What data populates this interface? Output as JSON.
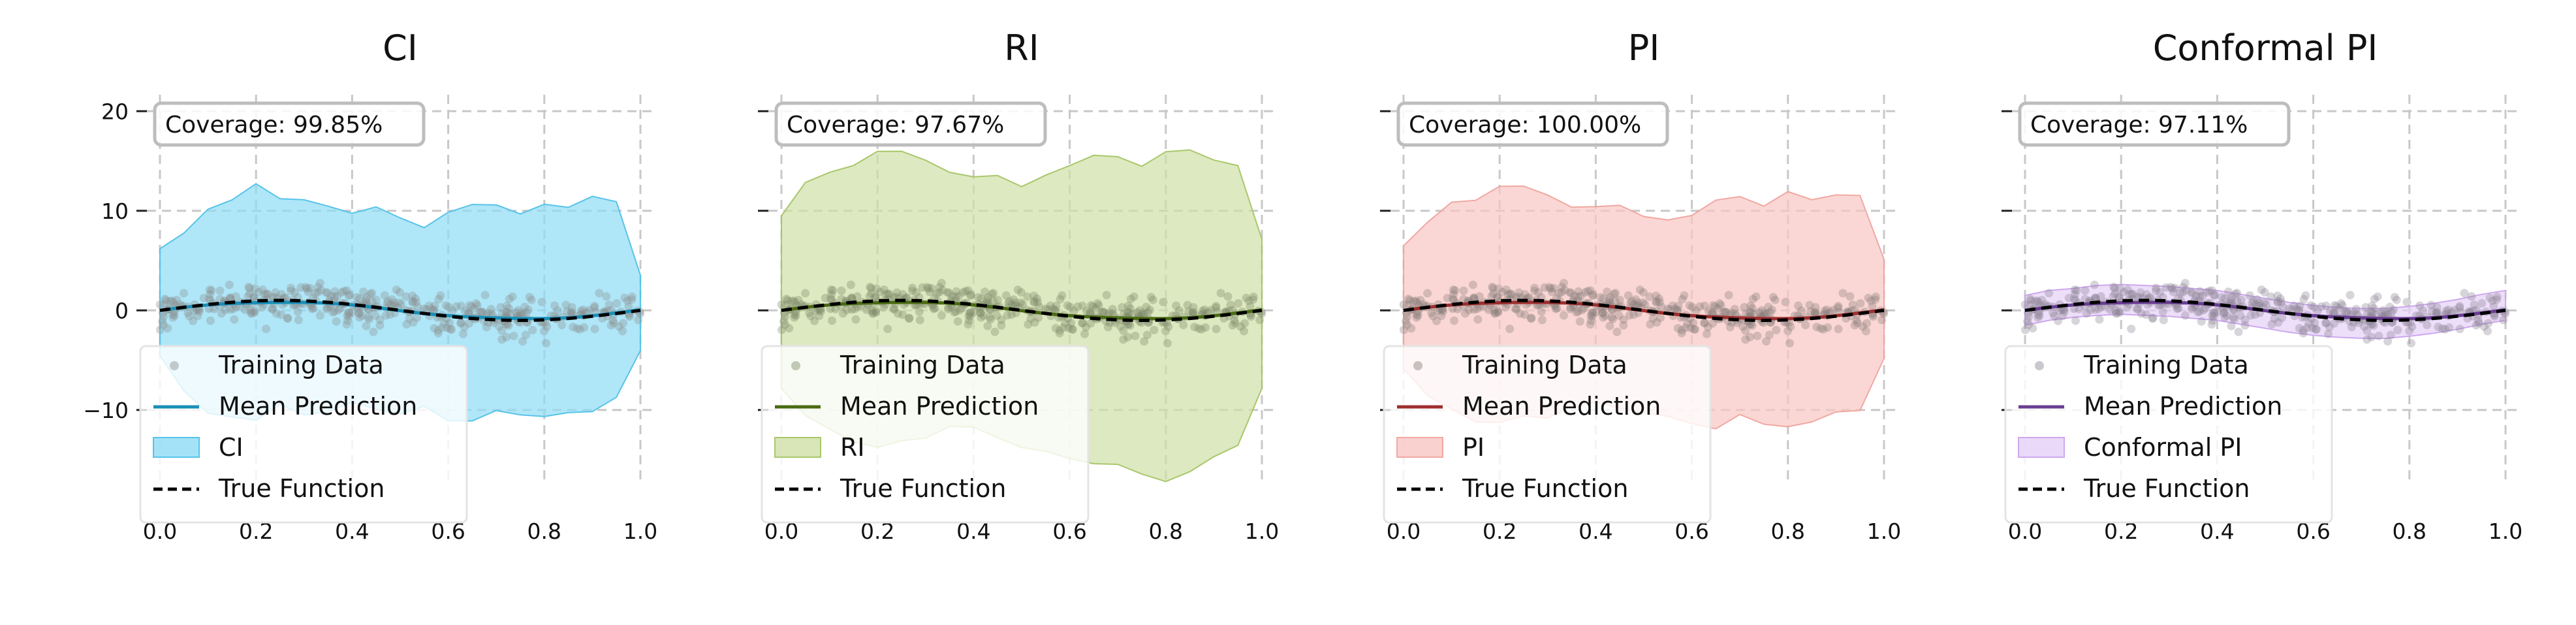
{
  "chart_data": [
    {
      "type": "line",
      "title": "CI",
      "coverage_label": "Coverage: 99.85%",
      "xlabel": "",
      "ylabel": "",
      "xlim": [
        0.0,
        1.0
      ],
      "ylim": [
        -19,
        21
      ],
      "xticks": [
        "0.0",
        "0.2",
        "0.4",
        "0.6",
        "0.8",
        "1.0"
      ],
      "yticks": [
        "20",
        "10",
        "0",
        "−10"
      ],
      "grid": true,
      "legend_position": "lower-left",
      "legend": [
        "Training Data",
        "Mean Prediction",
        "CI",
        "True Function"
      ],
      "band_label": "CI",
      "colors": {
        "band": "#8ddcf5",
        "band_edge": "#58c3e8",
        "mean": "#1a8fb8",
        "points": "#8a8f8f"
      },
      "band_upper": {
        "x": [
          0.0,
          0.05,
          0.1,
          0.15,
          0.2,
          0.25,
          0.3,
          0.35,
          0.4,
          0.45,
          0.5,
          0.55,
          0.6,
          0.65,
          0.7,
          0.75,
          0.8,
          0.85,
          0.9,
          0.95,
          1.0
        ],
        "y": [
          6,
          8,
          10,
          10.5,
          12.5,
          11,
          11.5,
          10,
          9.5,
          10,
          9,
          8.5,
          9.5,
          11,
          10.5,
          10,
          11,
          10,
          11,
          10.5,
          4
        ]
      },
      "band_lower": {
        "x": [
          0.0,
          0.05,
          0.1,
          0.15,
          0.2,
          0.25,
          0.3,
          0.35,
          0.4,
          0.45,
          0.5,
          0.55,
          0.6,
          0.65,
          0.7,
          0.75,
          0.8,
          0.85,
          0.9,
          0.95,
          1.0
        ],
        "y": [
          -5,
          -8,
          -10,
          -11,
          -11,
          -10,
          -10.5,
          -10,
          -9,
          -9.5,
          -10,
          -10,
          -11,
          -11,
          -10.5,
          -11,
          -10.5,
          -10,
          -10,
          -9,
          -4
        ]
      }
    },
    {
      "type": "line",
      "title": "RI",
      "coverage_label": "Coverage: 97.67%",
      "xlabel": "",
      "ylabel": "",
      "xlim": [
        0.0,
        1.0
      ],
      "ylim": [
        -19,
        21
      ],
      "xticks": [
        "0.0",
        "0.2",
        "0.4",
        "0.6",
        "0.8",
        "1.0"
      ],
      "yticks": [
        "20",
        "10",
        "0",
        "−10"
      ],
      "grid": true,
      "legend_position": "lower-left",
      "legend": [
        "Training Data",
        "Mean Prediction",
        "RI",
        "True Function"
      ],
      "band_label": "RI",
      "colors": {
        "band": "#cfe0a5",
        "band_edge": "#a9c76b",
        "mean": "#4a6b12",
        "points": "#7f8a6a"
      },
      "band_upper": {
        "x": [
          0.0,
          0.05,
          0.1,
          0.15,
          0.2,
          0.25,
          0.3,
          0.35,
          0.4,
          0.45,
          0.5,
          0.55,
          0.6,
          0.65,
          0.7,
          0.75,
          0.8,
          0.85,
          0.9,
          0.95,
          1.0
        ],
        "y": [
          10,
          13,
          14,
          15,
          16.5,
          16,
          15,
          14,
          13,
          13.5,
          12.5,
          14,
          15,
          16,
          15,
          14.5,
          15.5,
          16,
          15,
          14,
          7
        ]
      },
      "band_lower": {
        "x": [
          0.0,
          0.05,
          0.1,
          0.15,
          0.2,
          0.25,
          0.3,
          0.35,
          0.4,
          0.45,
          0.5,
          0.55,
          0.6,
          0.65,
          0.7,
          0.75,
          0.8,
          0.85,
          0.9,
          0.95,
          1.0
        ],
        "y": [
          -8,
          -10,
          -12,
          -13,
          -14,
          -13,
          -13,
          -12,
          -12,
          -13,
          -14,
          -14,
          -15,
          -15,
          -16,
          -17,
          -17,
          -16,
          -15,
          -13,
          -8
        ]
      }
    },
    {
      "type": "line",
      "title": "PI",
      "coverage_label": "Coverage: 100.00%",
      "xlabel": "",
      "ylabel": "",
      "xlim": [
        0.0,
        1.0
      ],
      "ylim": [
        -19,
        21
      ],
      "xticks": [
        "0.0",
        "0.2",
        "0.4",
        "0.6",
        "0.8",
        "1.0"
      ],
      "yticks": [
        "20",
        "10",
        "0",
        "−10"
      ],
      "grid": true,
      "legend_position": "lower-left",
      "legend": [
        "Training Data",
        "Mean Prediction",
        "PI",
        "True Function"
      ],
      "band_label": "PI",
      "colors": {
        "band": "#f8c6c2",
        "band_edge": "#f0a8a2",
        "mean": "#9e2f2f",
        "points": "#8a7d7a"
      },
      "band_upper": {
        "x": [
          0.0,
          0.05,
          0.1,
          0.15,
          0.2,
          0.25,
          0.3,
          0.35,
          0.4,
          0.45,
          0.5,
          0.55,
          0.6,
          0.65,
          0.7,
          0.75,
          0.8,
          0.85,
          0.9,
          0.95,
          1.0
        ],
        "y": [
          7,
          9,
          11,
          11.5,
          13,
          12.5,
          11.5,
          10.5,
          10,
          10.5,
          9.5,
          9.5,
          10,
          11.5,
          11,
          10.5,
          11.5,
          11,
          11.5,
          11,
          5
        ]
      },
      "band_lower": {
        "x": [
          0.0,
          0.05,
          0.1,
          0.15,
          0.2,
          0.25,
          0.3,
          0.35,
          0.4,
          0.45,
          0.5,
          0.55,
          0.6,
          0.65,
          0.7,
          0.75,
          0.8,
          0.85,
          0.9,
          0.95,
          1.0
        ],
        "y": [
          -6,
          -8,
          -10,
          -11,
          -11.5,
          -10.5,
          -11,
          -10,
          -9.5,
          -10,
          -10.5,
          -10.5,
          -11.5,
          -11.5,
          -11,
          -12,
          -11.5,
          -11,
          -10.5,
          -9.5,
          -5
        ]
      }
    },
    {
      "type": "line",
      "title": "Conformal PI",
      "coverage_label": "Coverage: 97.11%",
      "xlabel": "",
      "ylabel": "",
      "xlim": [
        0.0,
        1.0
      ],
      "ylim": [
        -19,
        21
      ],
      "xticks": [
        "0.0",
        "0.2",
        "0.4",
        "0.6",
        "0.8",
        "1.0"
      ],
      "yticks": [
        "20",
        "10",
        "0",
        "−10"
      ],
      "grid": true,
      "legend_position": "lower-left",
      "legend": [
        "Training Data",
        "Mean Prediction",
        "Conformal PI",
        "True Function"
      ],
      "band_label": "Conformal PI",
      "colors": {
        "band": "#e6d0f7",
        "band_edge": "#cda8ee",
        "mean": "#6a3e93",
        "points": "#8c8394"
      },
      "band_upper": {
        "x": [
          0.0,
          0.05,
          0.1,
          0.15,
          0.2,
          0.25,
          0.3,
          0.35,
          0.4,
          0.45,
          0.5,
          0.55,
          0.6,
          0.65,
          0.7,
          0.75,
          0.8,
          0.85,
          0.9,
          0.95,
          1.0
        ],
        "y": [
          1.5,
          2,
          2.2,
          2.5,
          2.6,
          2.5,
          2.4,
          2.2,
          2,
          1.6,
          1.2,
          0.8,
          0.5,
          0.3,
          0.2,
          0.2,
          0.4,
          0.7,
          1.1,
          1.6,
          2
        ]
      },
      "band_lower": {
        "x": [
          0.0,
          0.05,
          0.1,
          0.15,
          0.2,
          0.25,
          0.3,
          0.35,
          0.4,
          0.45,
          0.5,
          0.55,
          0.6,
          0.65,
          0.7,
          0.75,
          0.8,
          0.85,
          0.9,
          0.95,
          1.0
        ],
        "y": [
          -1.5,
          -1,
          -0.7,
          -0.5,
          -0.4,
          -0.5,
          -0.6,
          -0.8,
          -1,
          -1.4,
          -1.8,
          -2.2,
          -2.5,
          -2.7,
          -2.8,
          -2.8,
          -2.6,
          -2.3,
          -1.9,
          -1.4,
          -1
        ]
      }
    }
  ]
}
